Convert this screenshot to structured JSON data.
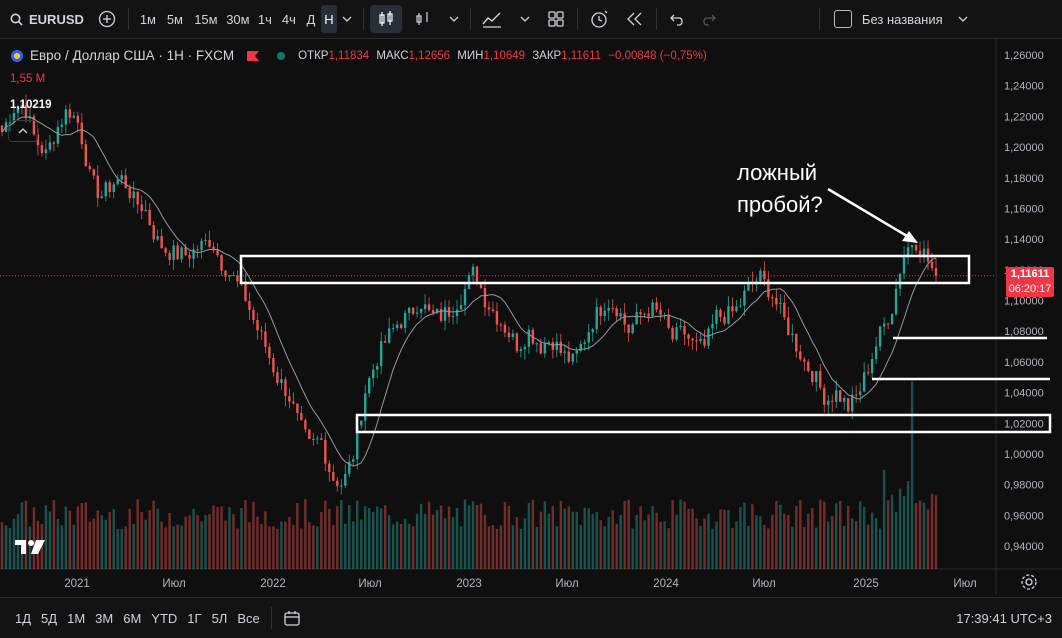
{
  "toolbar": {
    "symbol": "EURUSD",
    "intervals": [
      "1м",
      "5м",
      "15м",
      "30м",
      "1ч",
      "4ч",
      "Д",
      "Н"
    ],
    "active_interval": "Н",
    "layout_name": "Без названия"
  },
  "legend": {
    "title": "Евро / Доллар США · 1Н · FXCM",
    "open_label": "ОТКР",
    "open": "1,11834",
    "high_label": "МАКС",
    "high": "1,12656",
    "low_label": "МИН",
    "low": "1,10649",
    "close_label": "ЗАКР",
    "close": "1,11611",
    "change": "−0,00848 (−0,75%)",
    "volume": "1,55 M",
    "ma_value": "1,10219"
  },
  "price_axis": {
    "ticks": [
      "1,26000",
      "1,24000",
      "1,22000",
      "1,20000",
      "1,18000",
      "1,16000",
      "1,14000",
      "1,12000",
      "1,10000",
      "1,08000",
      "1,06000",
      "1,04000",
      "1,02000",
      "1,00000",
      "0,98000",
      "0,96000",
      "0,94000"
    ],
    "current_price": "1,11611",
    "countdown": "06:20:17"
  },
  "time_axis": {
    "ticks": [
      "2021",
      "Июл",
      "2022",
      "Июл",
      "2023",
      "Июл",
      "2024",
      "Июл",
      "2025",
      "Июл"
    ]
  },
  "annotation": {
    "line1": "ложный",
    "line2": "пробой?"
  },
  "ranges": [
    "1Д",
    "5Д",
    "1М",
    "3М",
    "6М",
    "YTD",
    "1Г",
    "5Л",
    "Все"
  ],
  "clock": "17:39:41 UTC+3",
  "colors": {
    "up": "#26a69a",
    "down": "#ef5350",
    "background": "#0f0f0f"
  },
  "chart_data": {
    "type": "candlestick",
    "title": "Евро / Доллар США · 1Н · FXCM",
    "ylim": [
      0.93,
      1.265
    ],
    "series": [
      {
        "name": "price",
        "values": [
          1.21,
          1.225,
          1.228,
          1.205,
          1.195,
          1.212,
          1.225,
          1.215,
          1.18,
          1.168,
          1.176,
          1.18,
          1.165,
          1.16,
          1.14,
          1.132,
          1.13,
          1.13,
          1.135,
          1.14,
          1.124,
          1.115,
          1.105,
          1.085,
          1.07,
          1.05,
          1.04,
          1.02,
          1.005,
          1.01,
          0.985,
          0.98,
          1.0,
          1.04,
          1.06,
          1.075,
          1.085,
          1.09,
          1.1,
          1.09,
          1.09,
          1.095,
          1.105,
          1.12,
          1.1,
          1.09,
          1.08,
          1.07,
          1.08,
          1.07,
          1.075,
          1.065,
          1.06,
          1.075,
          1.09,
          1.1,
          1.095,
          1.08,
          1.09,
          1.095,
          1.09,
          1.075,
          1.08,
          1.07,
          1.07,
          1.09,
          1.09,
          1.095,
          1.11,
          1.115,
          1.105,
          1.09,
          1.075,
          1.06,
          1.05,
          1.035,
          1.04,
          1.03,
          1.04,
          1.06,
          1.08,
          1.095,
          1.13,
          1.14,
          1.13,
          1.115
        ]
      },
      {
        "name": "MA",
        "values": []
      }
    ]
  }
}
